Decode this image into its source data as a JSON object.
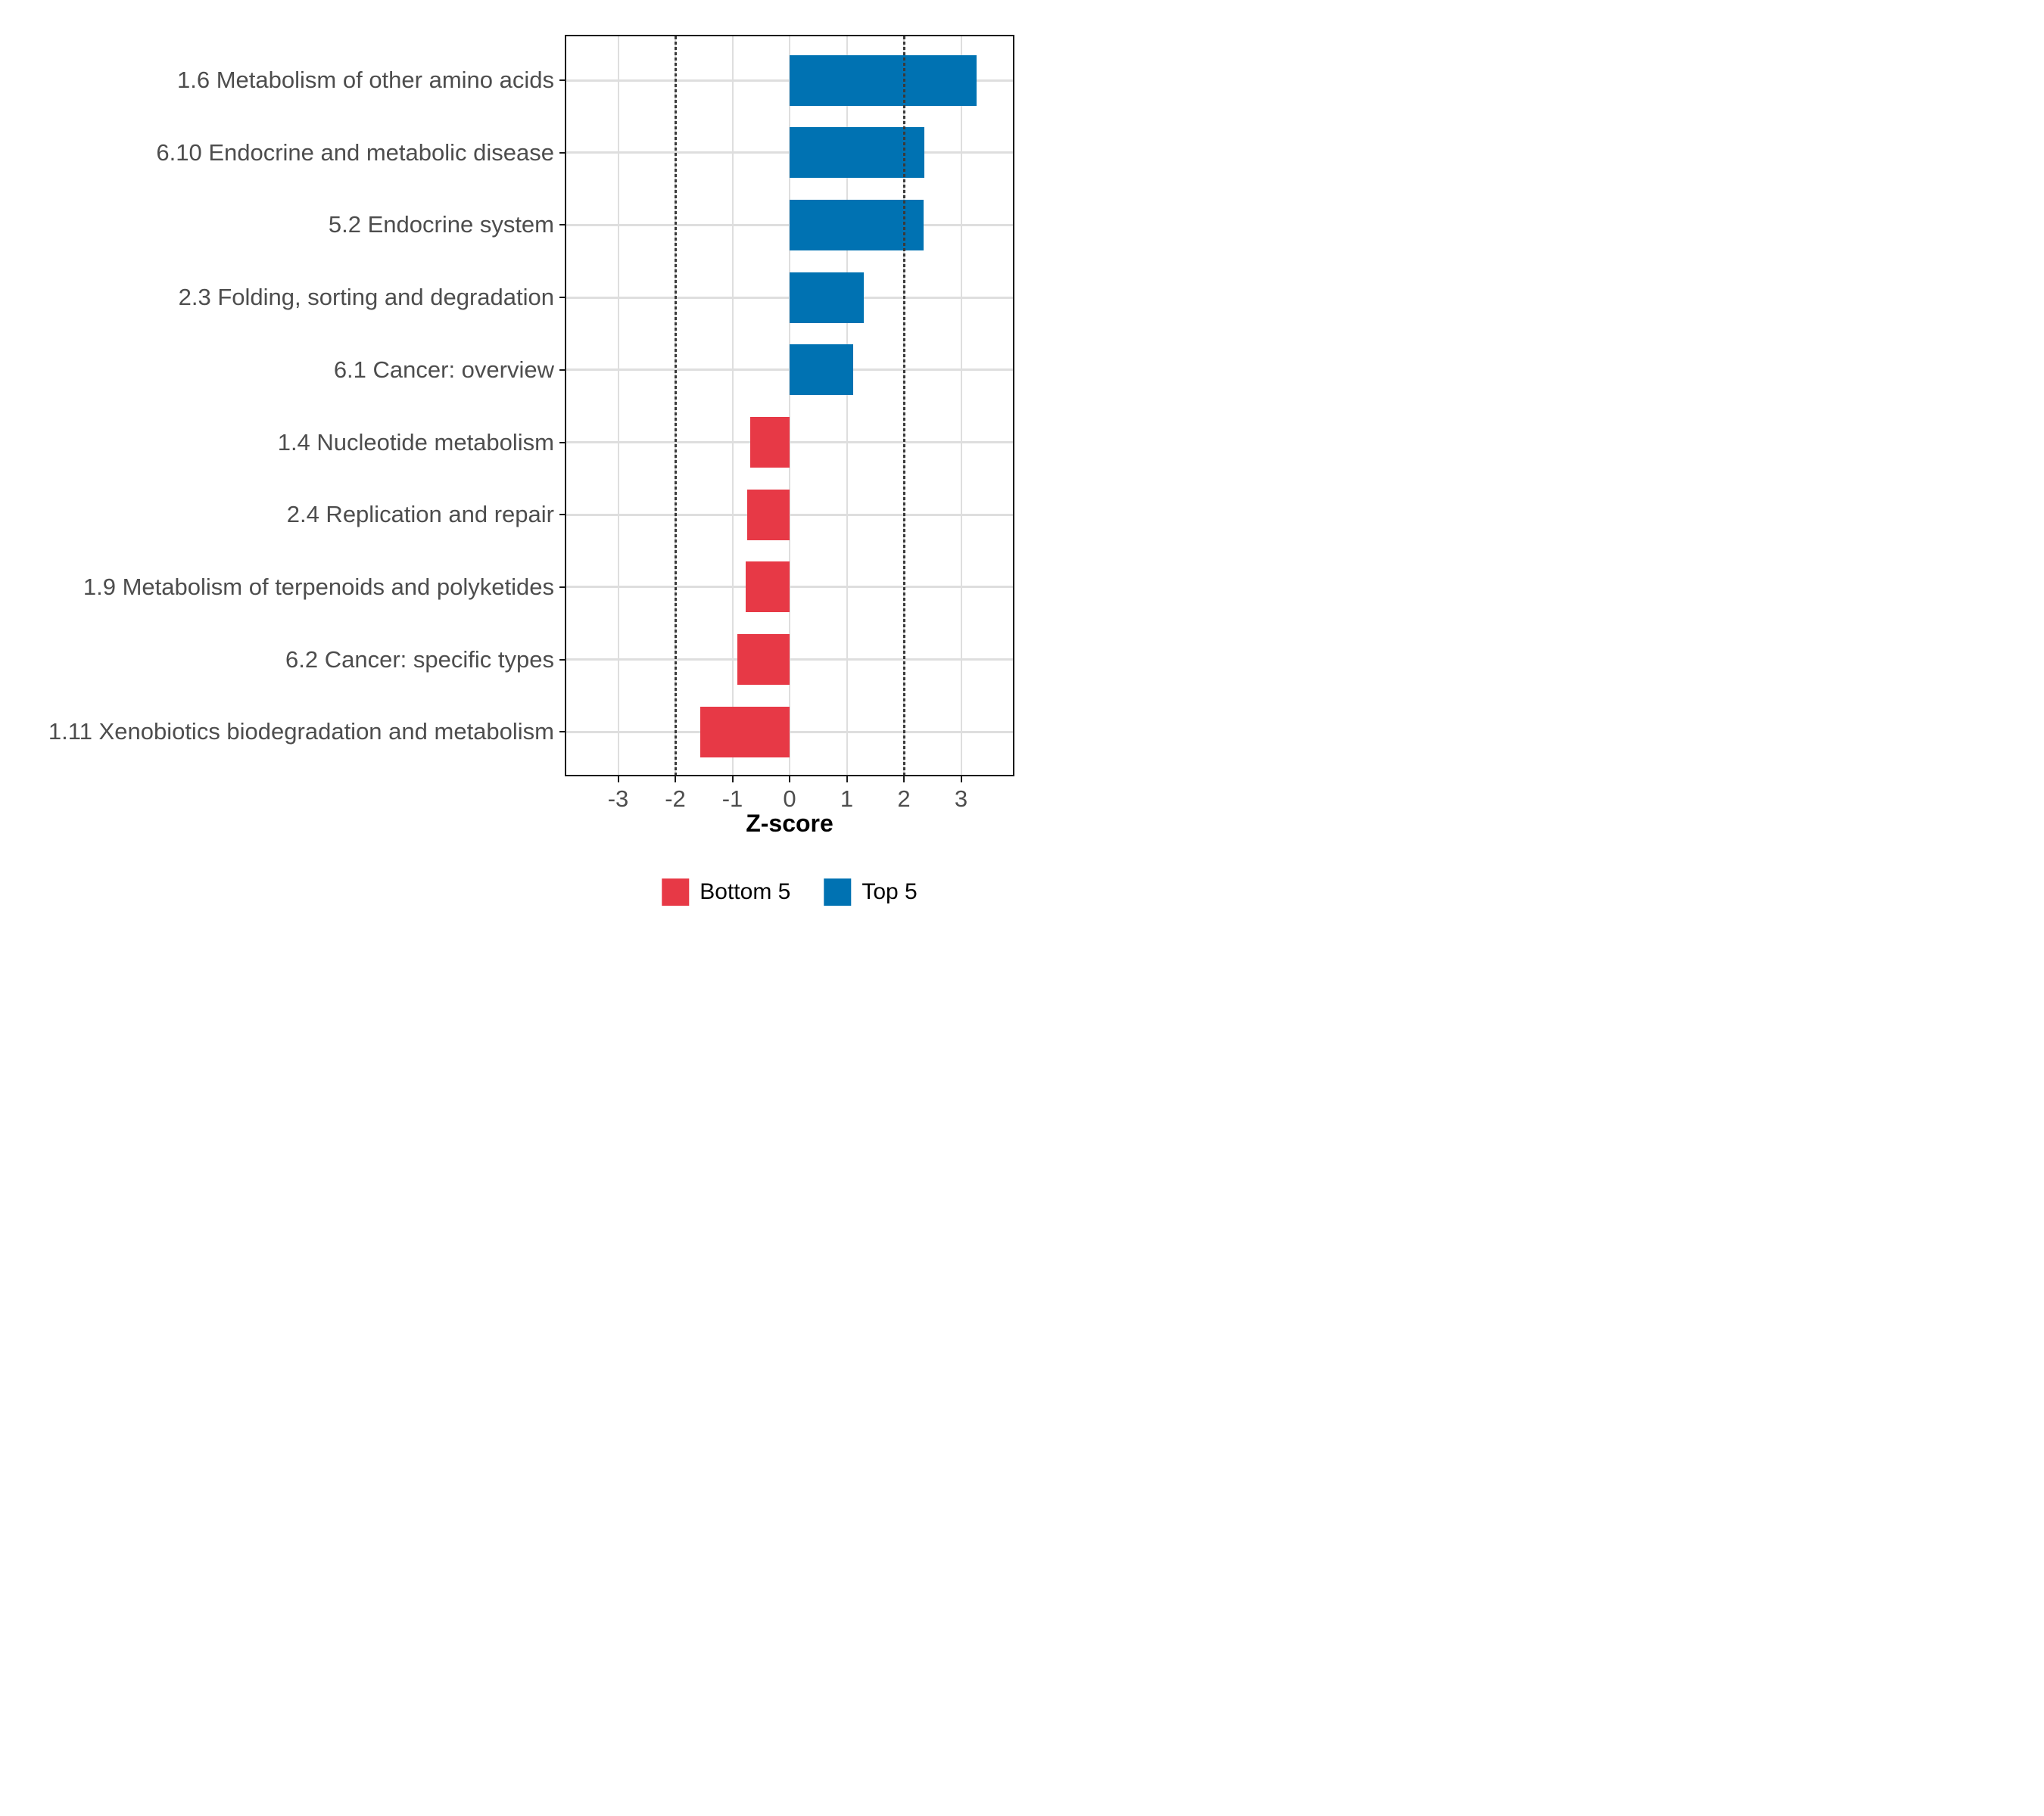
{
  "figure": {
    "xlabel": "Z-score",
    "background": "#ffffff",
    "legend": [
      {
        "label": "Bottom 5",
        "color": "#e73946"
      },
      {
        "label": "Top 5",
        "color": "#0072b2"
      }
    ]
  },
  "chart_data": {
    "type": "bar",
    "orientation": "horizontal",
    "title": "",
    "xlabel": "Z-score",
    "ylabel": "",
    "categories": [
      "1.6 Metabolism of other amino acids",
      "6.10 Endocrine and metabolic disease",
      "5.2 Endocrine system",
      "2.3 Folding, sorting and degradation",
      "6.1 Cancer: overview",
      "1.4 Nucleotide metabolism",
      "2.4 Replication and repair",
      "1.9 Metabolism of terpenoids and polyketides",
      "6.2 Cancer: specific types",
      "1.11 Xenobiotics biodegradation and metabolism"
    ],
    "values": [
      3.27,
      2.36,
      2.34,
      1.3,
      1.11,
      -0.69,
      -0.74,
      -0.77,
      -0.92,
      -1.56
    ],
    "groups": [
      "Top 5",
      "Top 5",
      "Top 5",
      "Top 5",
      "Top 5",
      "Bottom 5",
      "Bottom 5",
      "Bottom 5",
      "Bottom 5",
      "Bottom 5"
    ],
    "group_colors": {
      "Top 5": "#0072b2",
      "Bottom 5": "#e73946"
    },
    "x_ticks": [
      -3,
      -2,
      -1,
      0,
      1,
      2,
      3
    ],
    "xlim": [
      -3.9,
      3.9
    ],
    "reference_lines": {
      "x": [
        -2,
        2
      ],
      "style": "dotted",
      "color": "#3a3a3a"
    },
    "grid": true,
    "grid_color": "#dedede",
    "panel_border": true,
    "legend_position": "bottom"
  }
}
